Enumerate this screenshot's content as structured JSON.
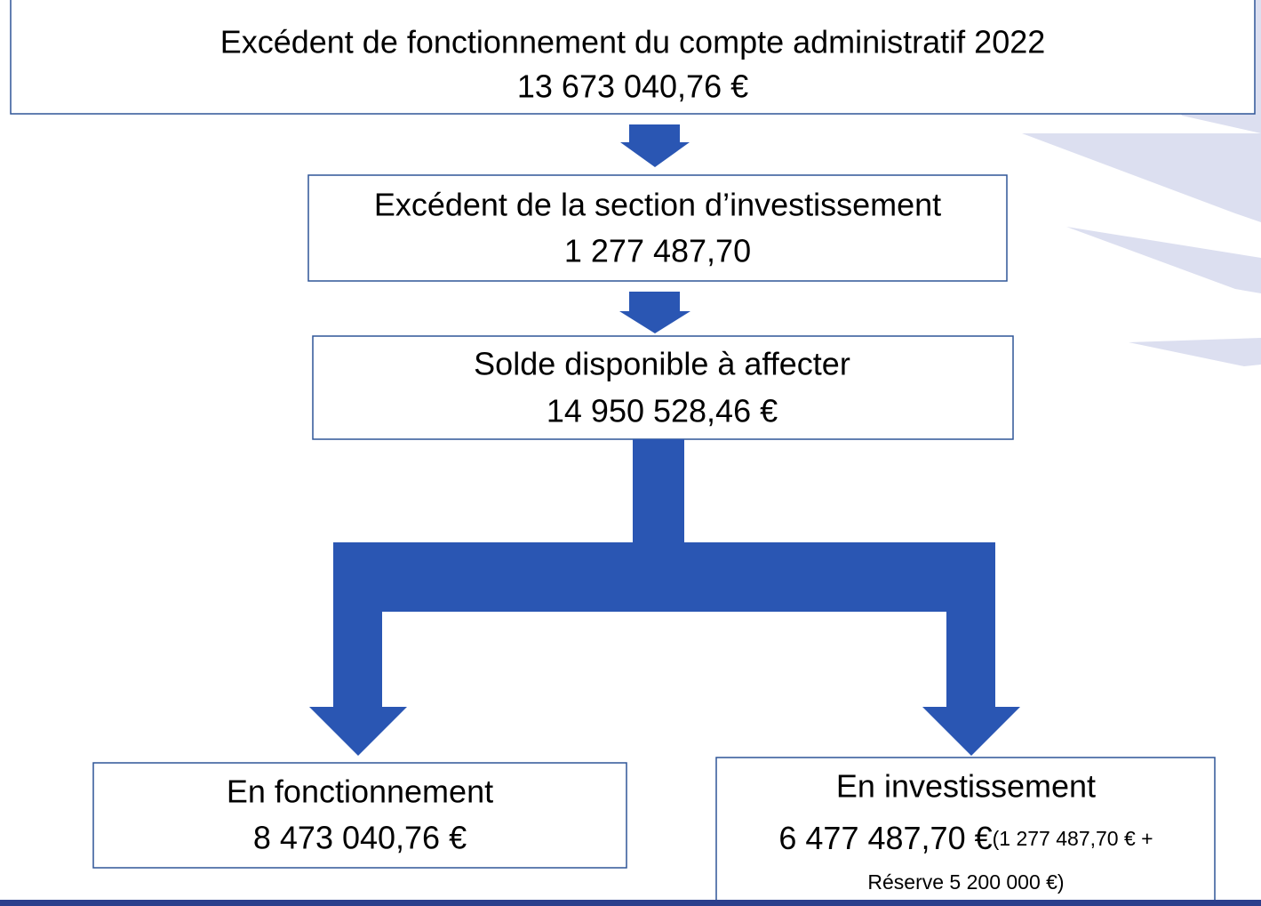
{
  "nodes": [
    {
      "label": "Excédent de fonctionnement du compte administratif 2022",
      "value": "13 673 040,76 €"
    },
    {
      "label": "Excédent de la section d’investissement",
      "value": "1 277 487,70"
    },
    {
      "label": "Solde disponible à affecter",
      "value": "14 950 528,46 €"
    },
    {
      "label": "En fonctionnement",
      "value": "8 473 040,76 €"
    },
    {
      "label": "En investissement",
      "value": "6 477 487,70 €",
      "detail_line1": "(1 277 487,70 € +",
      "detail_line2": "Réserve 5 200 000 €)"
    }
  ]
}
